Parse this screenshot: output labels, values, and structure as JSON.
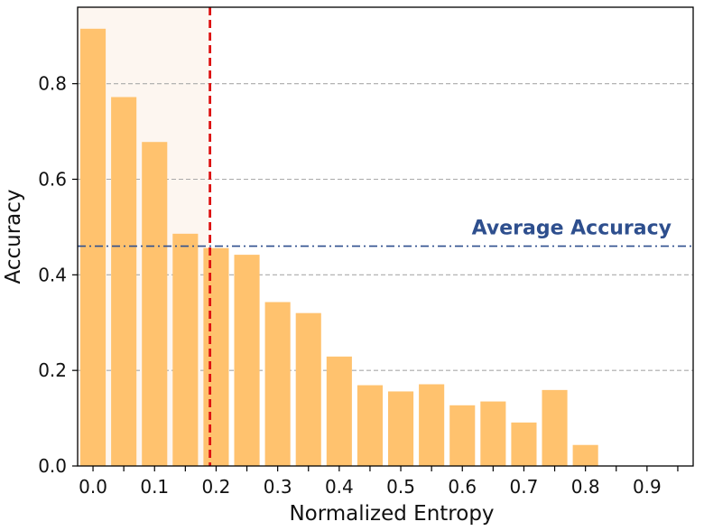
{
  "chart_data": {
    "type": "bar",
    "xlabel": "Normalized Entropy",
    "ylabel": "Accuracy",
    "x_ticks": [
      "0.0",
      "0.1",
      "0.2",
      "0.3",
      "0.4",
      "0.5",
      "0.6",
      "0.7",
      "0.8",
      "0.9"
    ],
    "y_ticks": [
      "0.0",
      "0.2",
      "0.4",
      "0.6",
      "0.8"
    ],
    "xlim": [
      -0.025,
      0.975
    ],
    "ylim": [
      0,
      0.96
    ],
    "bin_width": 0.05,
    "x": [
      0.0,
      0.05,
      0.1,
      0.15,
      0.2,
      0.25,
      0.3,
      0.35,
      0.4,
      0.45,
      0.5,
      0.55,
      0.6,
      0.65,
      0.7,
      0.75,
      0.8
    ],
    "values": [
      0.915,
      0.772,
      0.678,
      0.486,
      0.456,
      0.442,
      0.343,
      0.32,
      0.229,
      0.169,
      0.156,
      0.171,
      0.127,
      0.135,
      0.091,
      0.159,
      0.044
    ],
    "bar_color": "#FFC26E",
    "threshold": {
      "x": 0.19,
      "color": "#DD1111"
    },
    "shaded_region": {
      "x_range": [
        -0.025,
        0.19
      ],
      "color": "#FDF6F0"
    },
    "average": {
      "label": "Average Accuracy",
      "value": 0.46,
      "color": "#2E4F8E"
    },
    "grid": {
      "axis": "y",
      "style": "dashed",
      "color": "#AAAAAA"
    }
  }
}
